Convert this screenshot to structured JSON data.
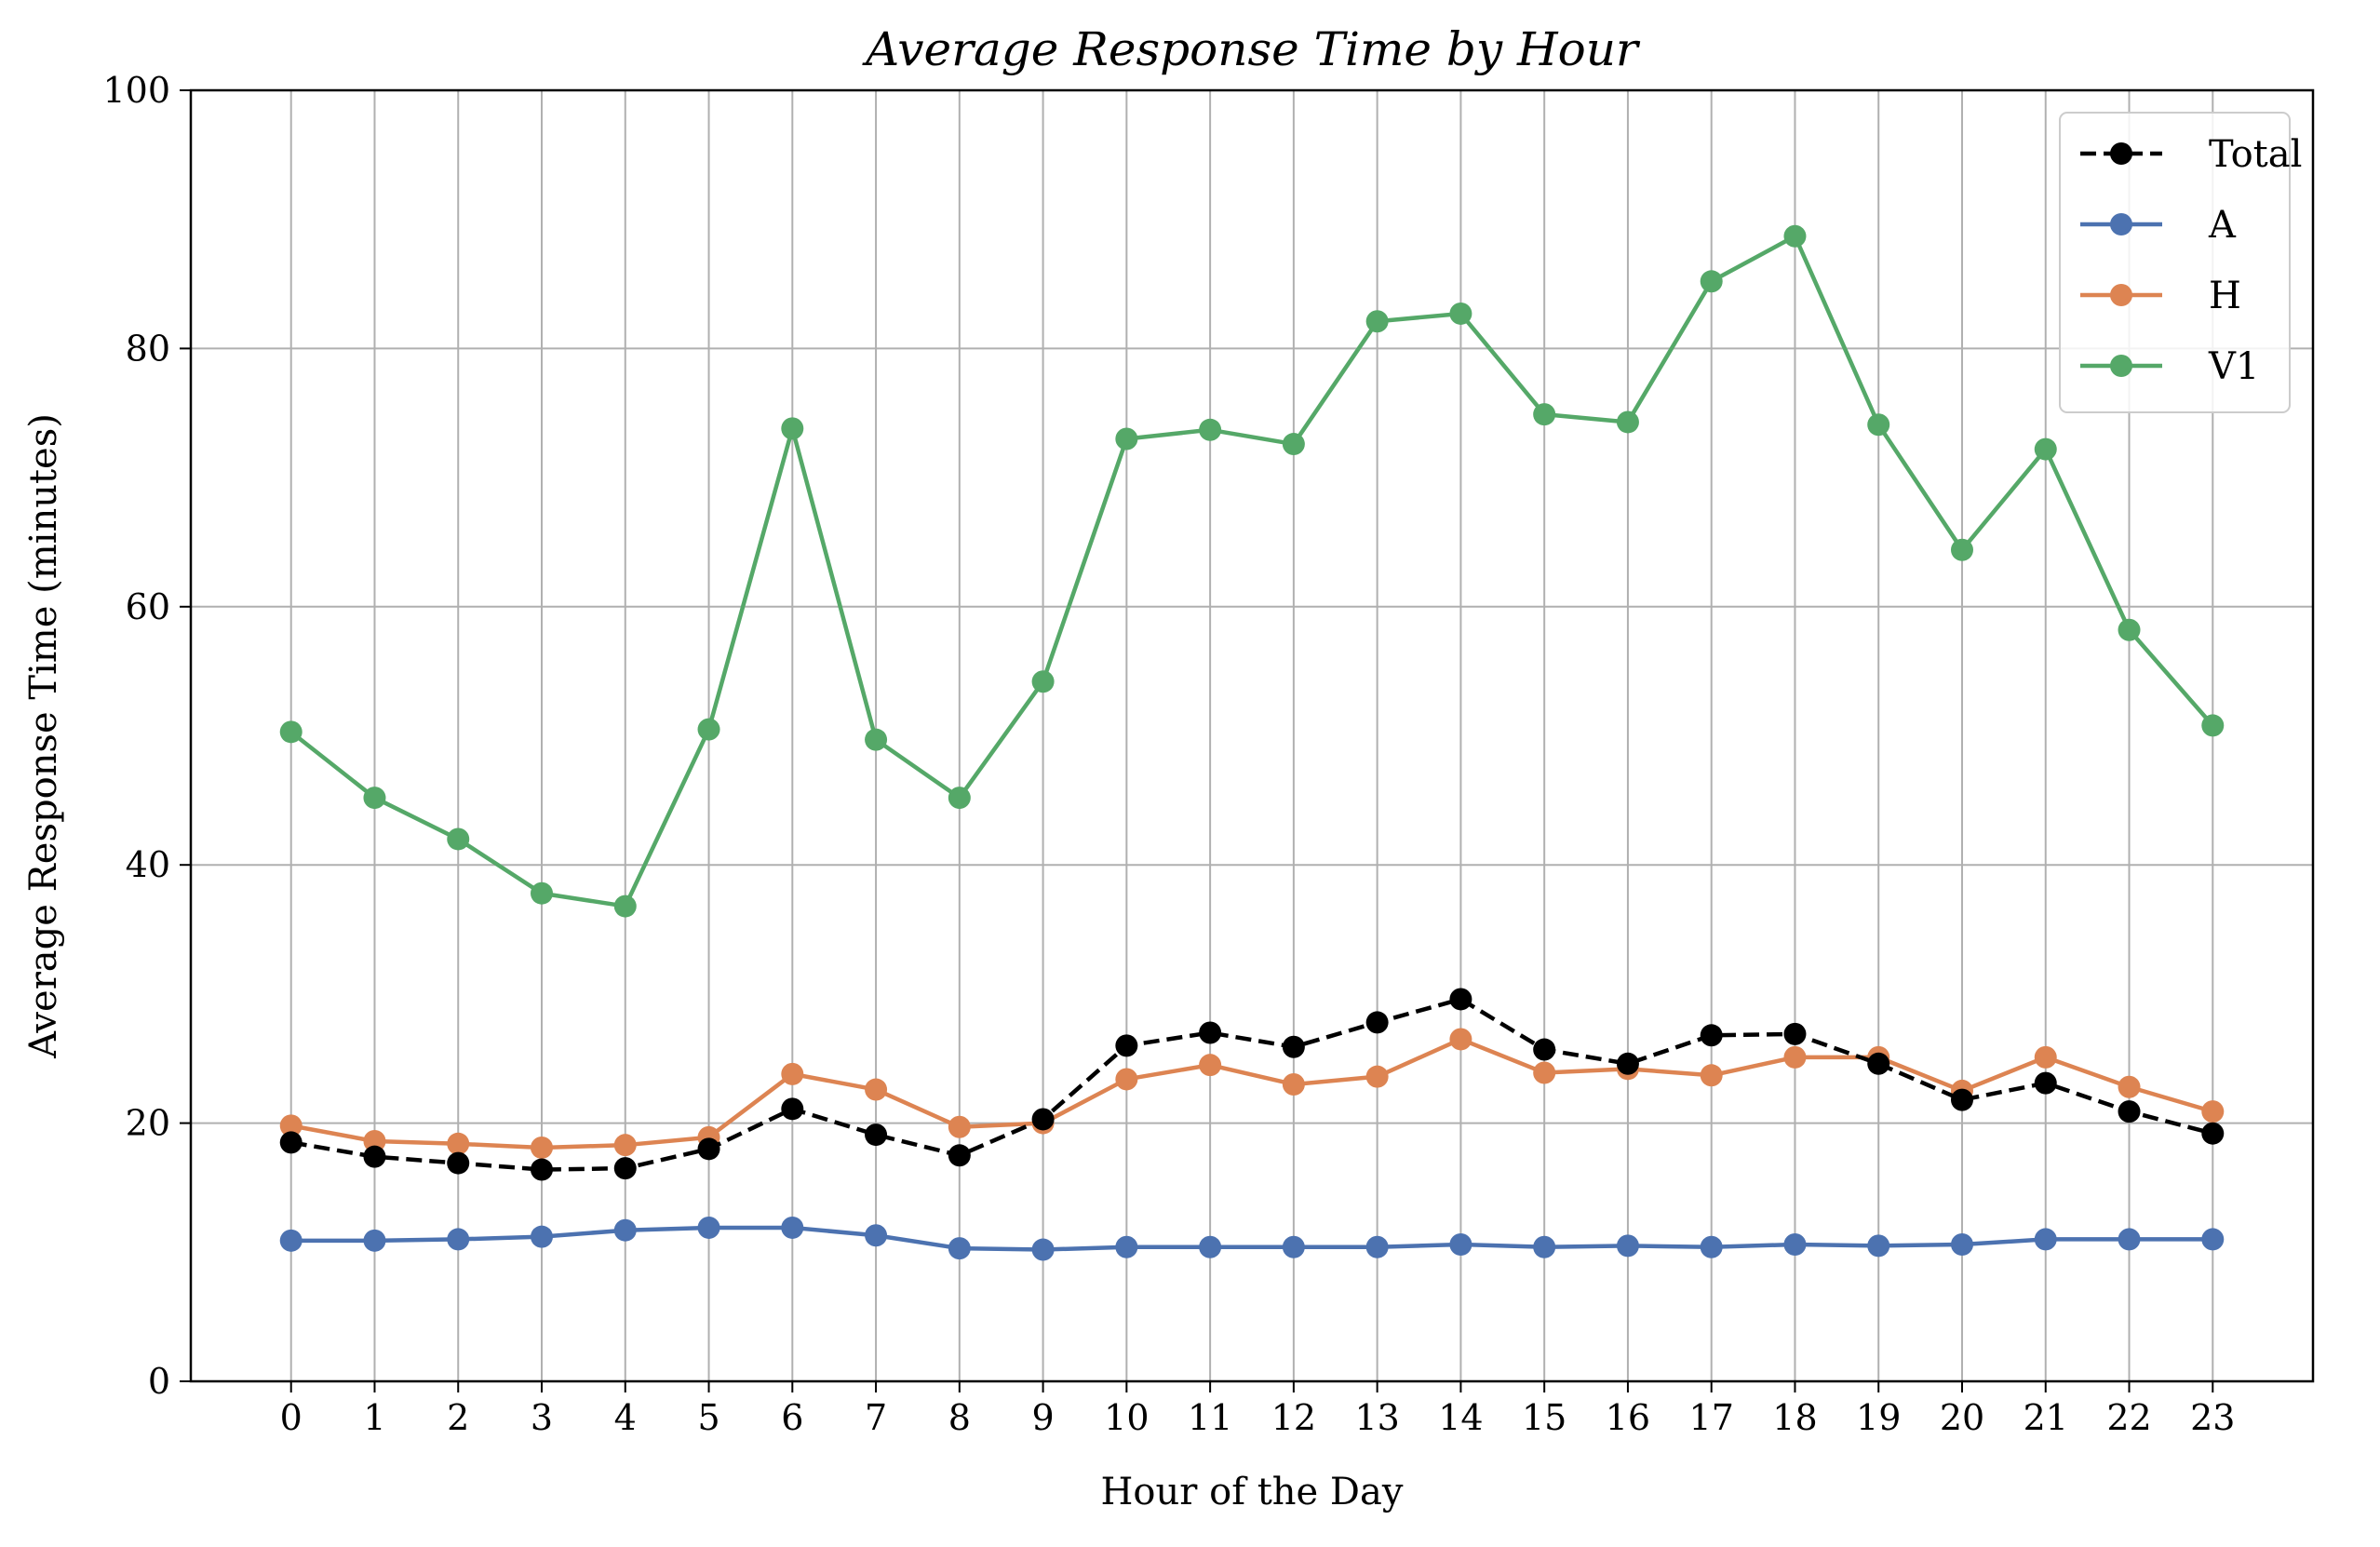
{
  "chart_data": {
    "type": "line",
    "title": "Average Response Time by Hour",
    "xlabel": "Hour of the Day",
    "ylabel": "Average Response Time (minutes)",
    "x": [
      0,
      1,
      2,
      3,
      4,
      5,
      6,
      7,
      8,
      9,
      10,
      11,
      12,
      13,
      14,
      15,
      16,
      17,
      18,
      19,
      20,
      21,
      22,
      23
    ],
    "x_tick_labels": [
      "0",
      "1",
      "2",
      "3",
      "4",
      "5",
      "6",
      "7",
      "8",
      "9",
      "10",
      "11",
      "12",
      "13",
      "14",
      "15",
      "16",
      "17",
      "18",
      "19",
      "20",
      "21",
      "22",
      "23"
    ],
    "xlim": [
      -1.2,
      24.2
    ],
    "ylim": [
      0,
      100
    ],
    "y_ticks": [
      0,
      20,
      40,
      60,
      80,
      100
    ],
    "y_tick_labels": [
      "0",
      "20",
      "40",
      "60",
      "80",
      "100"
    ],
    "grid": true,
    "legend_position": "top-right",
    "series": [
      {
        "name": "Total",
        "color": "#000000",
        "line_style": "dashed",
        "values": [
          18.5,
          17.4,
          16.9,
          16.4,
          16.5,
          18.0,
          21.1,
          19.1,
          17.5,
          20.3,
          26.0,
          27.0,
          25.9,
          27.8,
          29.6,
          25.7,
          24.6,
          26.8,
          26.9,
          24.6,
          21.8,
          23.1,
          20.9,
          19.2
        ]
      },
      {
        "name": "A",
        "color": "#4C72B0",
        "line_style": "solid",
        "values": [
          10.9,
          10.9,
          11.0,
          11.2,
          11.7,
          11.9,
          11.9,
          11.3,
          10.3,
          10.2,
          10.4,
          10.4,
          10.4,
          10.4,
          10.6,
          10.4,
          10.5,
          10.4,
          10.6,
          10.5,
          10.6,
          11.0,
          11.0,
          11.0
        ]
      },
      {
        "name": "H",
        "color": "#DD8452",
        "line_style": "solid",
        "values": [
          19.8,
          18.6,
          18.4,
          18.1,
          18.3,
          18.9,
          23.8,
          22.6,
          19.7,
          20.0,
          23.4,
          24.5,
          23.0,
          23.6,
          26.5,
          23.9,
          24.2,
          23.7,
          25.1,
          25.1,
          22.5,
          25.1,
          22.8,
          20.9
        ]
      },
      {
        "name": "V1",
        "color": "#55A868",
        "line_style": "solid",
        "values": [
          50.3,
          45.2,
          42.0,
          37.8,
          36.8,
          50.5,
          73.8,
          49.7,
          45.2,
          54.2,
          73.0,
          73.7,
          72.6,
          82.1,
          82.7,
          74.9,
          74.3,
          85.2,
          88.7,
          74.1,
          64.4,
          72.2,
          58.2,
          50.8
        ]
      }
    ]
  }
}
